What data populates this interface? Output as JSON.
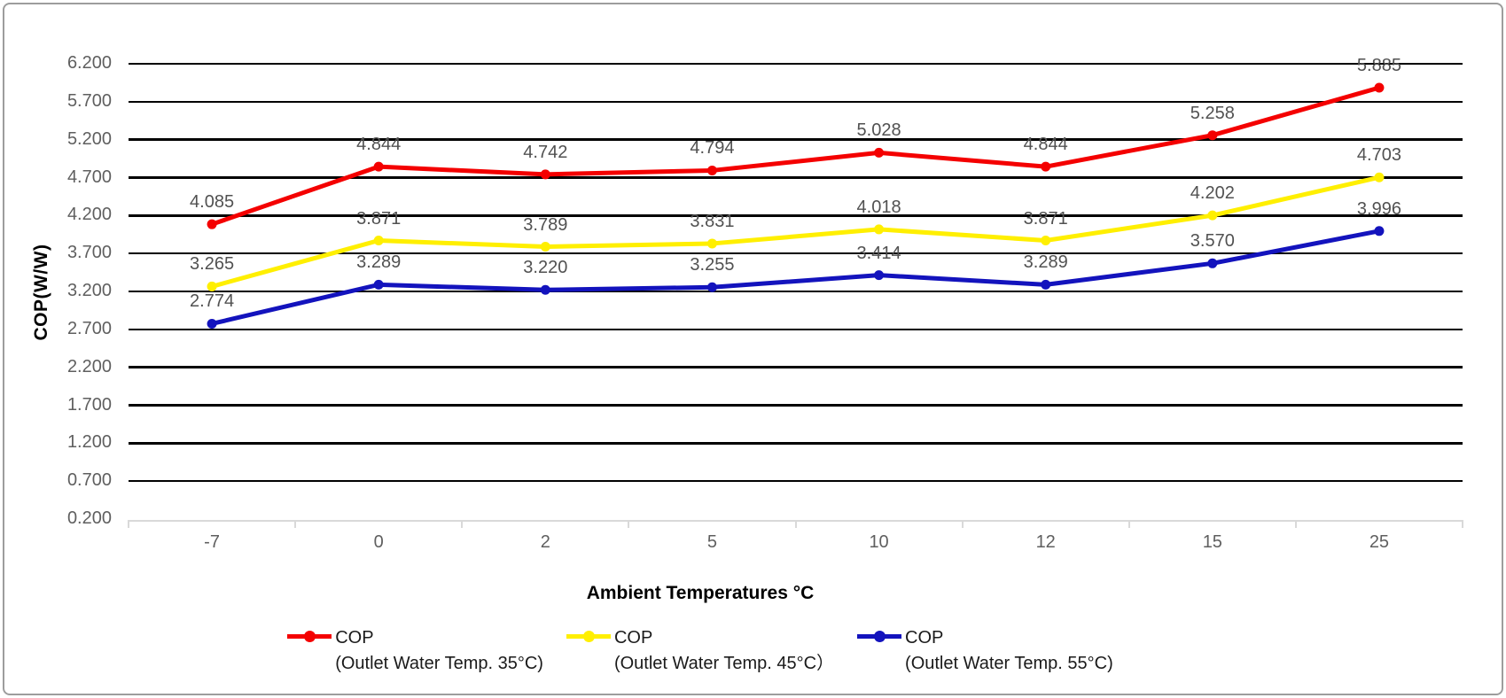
{
  "frame": {
    "border_color": "#9d9d9d",
    "background": "#ffffff"
  },
  "chart_data": {
    "type": "line",
    "title": "",
    "xlabel": "Ambient Temperatures °C",
    "ylabel": "COP(W/W)",
    "categories": [
      "-7",
      "0",
      "2",
      "5",
      "10",
      "12",
      "15",
      "25"
    ],
    "y_axis": {
      "min": 0.2,
      "max": 6.2,
      "step": 0.5,
      "tick_labels": [
        "6.200",
        "5.700",
        "5.200",
        "4.700",
        "4.200",
        "3.700",
        "3.200",
        "2.700",
        "2.200",
        "1.700",
        "1.200",
        "0.700",
        "0.200"
      ]
    },
    "grid": "horizontal",
    "gridline_color": "#000000",
    "category_axis_color": "#d9d9d9",
    "tick_label_color": "#5f5f5f",
    "data_label_color": "#515151",
    "legend_position": "bottom",
    "series": [
      {
        "name_lines": [
          "COP",
          "(Outlet Water Temp. 35°C)"
        ],
        "color": "#f40000",
        "values": [
          4.085,
          4.844,
          4.742,
          4.794,
          5.028,
          4.844,
          5.258,
          5.885
        ],
        "point_labels": [
          "4.085",
          "4.844",
          "4.742",
          "4.794",
          "5.028",
          "4.844",
          "5.258",
          "5.885"
        ]
      },
      {
        "name_lines": [
          "COP",
          "(Outlet Water Temp. 45°C）"
        ],
        "color": "#ffef00",
        "values": [
          3.265,
          3.871,
          3.789,
          3.831,
          4.018,
          3.871,
          4.202,
          4.703
        ],
        "point_labels": [
          "3.265",
          "3.871",
          "3.789",
          "3.831",
          "4.018",
          "3.871",
          "4.202",
          "4.703"
        ]
      },
      {
        "name_lines": [
          "COP",
          "(Outlet Water Temp. 55°C)"
        ],
        "color": "#1313bd",
        "values": [
          2.774,
          3.289,
          3.22,
          3.255,
          3.414,
          3.289,
          3.57,
          3.996
        ],
        "point_labels": [
          "2.774",
          "3.289",
          "3.220",
          "3.255",
          "3.414",
          "3.289",
          "3.570",
          "3.996"
        ]
      }
    ]
  }
}
